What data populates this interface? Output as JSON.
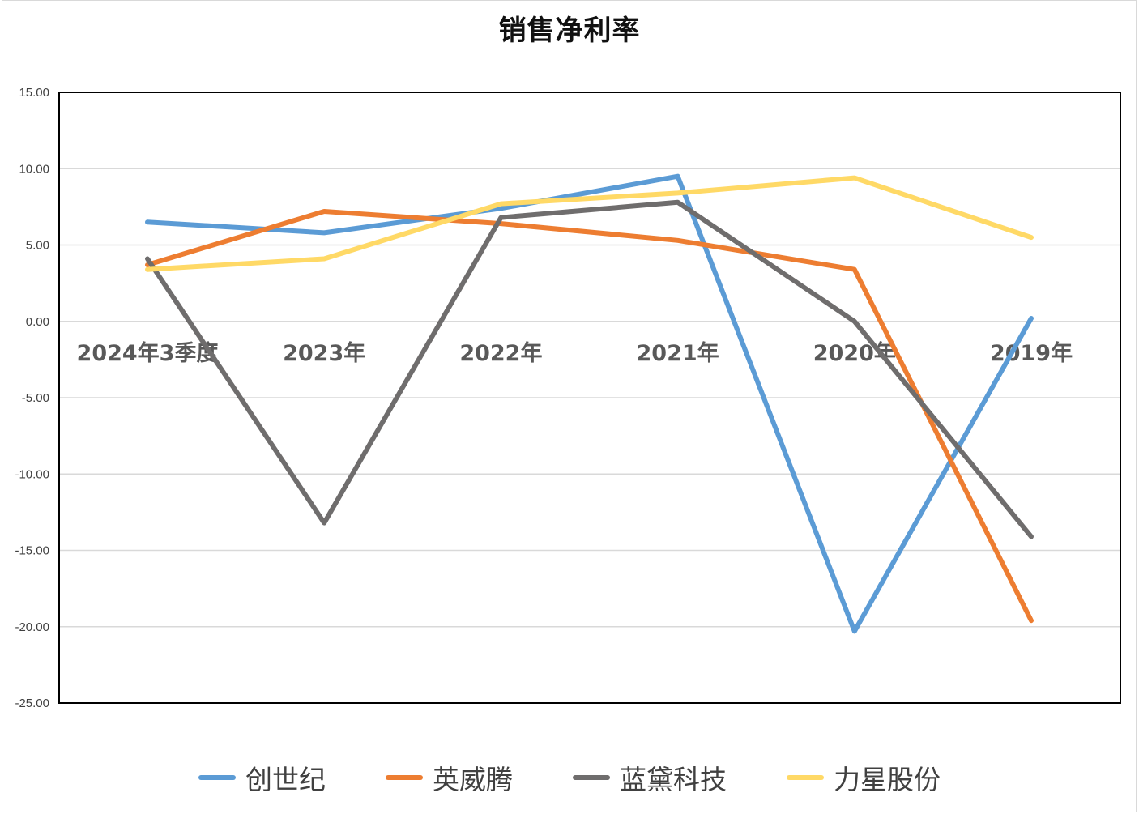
{
  "chart_data": {
    "type": "line",
    "title": "销售净利率",
    "xlabel": "",
    "ylabel": "",
    "categories": [
      "2024年3季度",
      "2023年",
      "2022年",
      "2021年",
      "2020年",
      "2019年"
    ],
    "ylim": [
      -25,
      15
    ],
    "yticks": [
      15,
      10,
      5,
      0,
      -5,
      -10,
      -15,
      -20,
      -25
    ],
    "ytick_labels": [
      "15.00",
      "10.00",
      "5.00",
      "0.00",
      "-5.00",
      "-10.00",
      "-15.00",
      "-20.00",
      "-25.00"
    ],
    "grid": true,
    "legend_position": "bottom",
    "series": [
      {
        "name": "创世纪",
        "color": "#5b9bd5",
        "values": [
          6.5,
          5.8,
          7.4,
          9.5,
          -20.3,
          0.2
        ]
      },
      {
        "name": "英威腾",
        "color": "#ed7d31",
        "values": [
          3.7,
          7.2,
          6.4,
          5.3,
          3.4,
          -19.6
        ]
      },
      {
        "name": "蓝黛科技",
        "color": "#6f6d6d",
        "values": [
          4.1,
          -13.2,
          6.8,
          7.8,
          0.0,
          -14.1
        ]
      },
      {
        "name": "力星股份",
        "color": "#ffd966",
        "values": [
          3.4,
          4.1,
          7.7,
          8.4,
          9.4,
          5.5
        ]
      }
    ]
  }
}
